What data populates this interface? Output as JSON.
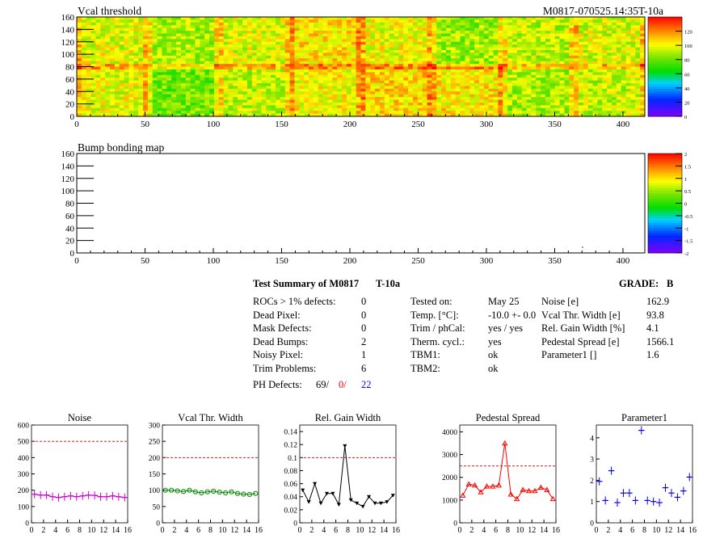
{
  "module_id": "M0817-070525.14:35T-10a",
  "vcal_map": {
    "title": "Vcal threshold",
    "x_ticks": [
      "0",
      "50",
      "100",
      "150",
      "200",
      "250",
      "300",
      "350",
      "400"
    ],
    "y_ticks": [
      "0",
      "20",
      "40",
      "60",
      "80",
      "100",
      "120",
      "140",
      "160"
    ],
    "xlim": [
      0,
      416
    ],
    "ylim": [
      0,
      160
    ],
    "palette_ticks": [
      "0",
      "20",
      "40",
      "60",
      "80",
      "100",
      "120"
    ],
    "palette_max": 140
  },
  "bump_map": {
    "title": "Bump bonding map",
    "x_ticks": [
      "0",
      "50",
      "100",
      "150",
      "200",
      "250",
      "300",
      "350",
      "400"
    ],
    "y_ticks": [
      "0",
      "20",
      "40",
      "60",
      "80",
      "100",
      "120",
      "140",
      "160"
    ],
    "xlim": [
      0,
      416
    ],
    "ylim": [
      0,
      160
    ],
    "palette_ticks": [
      "-2",
      "-1.5",
      "-1",
      "-0.5",
      "0",
      "0.5",
      "1",
      "1.5",
      "2"
    ],
    "dot": {
      "x": 370,
      "y": 10
    }
  },
  "summary": {
    "title": "Test Summary of M0817",
    "temp_tag": "T-10a",
    "grade_label": "GRADE:",
    "grade": "B",
    "left_labels": [
      "ROCs > 1% defects:",
      "Dead Pixel:",
      "Mask Defects:",
      "Dead Bumps:",
      "Noisy Pixel:",
      "Trim Problems:"
    ],
    "left_values": [
      "0",
      "0",
      "0",
      "2",
      "1",
      "6"
    ],
    "ph_label": "PH Defects:",
    "ph_values": [
      "69/",
      "0/",
      "22"
    ],
    "ph_colors": [
      "#000000",
      "#ff0000",
      "#0000ff"
    ],
    "mid_labels": [
      "Tested on:",
      "Temp. [°C]:",
      "Trim / phCal:",
      "Therm. cycl.:",
      "TBM1:",
      "TBM2:"
    ],
    "mid_values": [
      "May 25",
      "-10.0 +- 0.0",
      "yes / yes",
      "yes",
      "ok",
      "ok"
    ],
    "right_labels": [
      "Noise [e]",
      "Vcal Thr. Width [e]",
      "Rel. Gain Width [%]",
      "Pedestal Spread [e]",
      "Parameter1 []"
    ],
    "right_values": [
      "162.9",
      "93.8",
      "4.1",
      "1566.1",
      "1.6"
    ]
  },
  "chart_data": [
    {
      "type": "line",
      "title": "Noise",
      "color": "#cc00cc",
      "marker": "cross",
      "x": [
        0,
        1,
        2,
        3,
        4,
        5,
        6,
        7,
        8,
        9,
        10,
        11,
        12,
        13,
        14,
        15
      ],
      "values": [
        175,
        170,
        170,
        160,
        155,
        160,
        165,
        160,
        165,
        170,
        168,
        160,
        160,
        165,
        160,
        155
      ],
      "ylim": [
        0,
        600
      ],
      "yticks": [
        "0",
        "100",
        "200",
        "300",
        "400",
        "500",
        "600"
      ],
      "limit": 500,
      "line": true
    },
    {
      "type": "line",
      "title": "Vcal Thr. Width",
      "color": "#008800",
      "marker": "circle",
      "x": [
        0,
        1,
        2,
        3,
        4,
        5,
        6,
        7,
        8,
        9,
        10,
        11,
        12,
        13,
        14,
        15
      ],
      "values": [
        100,
        100,
        98,
        96,
        100,
        95,
        92,
        95,
        97,
        94,
        92,
        95,
        90,
        88,
        87,
        90
      ],
      "ylim": [
        0,
        300
      ],
      "yticks": [
        "0",
        "50",
        "100",
        "150",
        "200",
        "250",
        "300"
      ],
      "limit": 200,
      "line": true
    },
    {
      "type": "line",
      "title": "Rel. Gain Width",
      "color": "#000000",
      "marker": "triangle-down",
      "x": [
        0,
        1,
        2,
        3,
        4,
        5,
        6,
        7,
        8,
        9,
        10,
        11,
        12,
        13,
        14,
        15
      ],
      "values": [
        0.05,
        0.032,
        0.06,
        0.03,
        0.045,
        0.045,
        0.028,
        0.118,
        0.035,
        0.03,
        0.025,
        0.04,
        0.03,
        0.03,
        0.032,
        0.042
      ],
      "ylim": [
        0,
        0.15
      ],
      "yticks": [
        "0",
        "0.02",
        "0.04",
        "0.06",
        "0.08",
        "0.1",
        "0.12",
        "0.14"
      ],
      "limit": 0.1,
      "line": true
    },
    {
      "type": "line",
      "title": "Pedestal Spread",
      "color": "#ff0000",
      "marker": "triangle-up",
      "x": [
        0,
        1,
        2,
        3,
        4,
        5,
        6,
        7,
        8,
        9,
        10,
        11,
        12,
        13,
        14,
        15
      ],
      "values": [
        1200,
        1700,
        1650,
        1350,
        1600,
        1600,
        1650,
        3500,
        1250,
        1050,
        1450,
        1400,
        1400,
        1550,
        1450,
        1050
      ],
      "ylim": [
        0,
        4300
      ],
      "yticks": [
        "0",
        "1000",
        "2000",
        "3000",
        "4000"
      ],
      "limit": 2500,
      "line": true
    },
    {
      "type": "scatter",
      "title": "Parameter1",
      "color": "#0000ff",
      "marker": "cross",
      "x": [
        0,
        1,
        2,
        3,
        4,
        5,
        6,
        7,
        8,
        9,
        10,
        11,
        12,
        13,
        14,
        15
      ],
      "values": [
        1.95,
        1.05,
        2.45,
        0.95,
        1.4,
        1.4,
        1.05,
        4.35,
        1.05,
        1.0,
        0.95,
        1.65,
        1.4,
        1.2,
        1.5,
        2.15
      ],
      "ylim": [
        0,
        4.6
      ],
      "yticks": [
        "0",
        "1",
        "2",
        "3",
        "4"
      ],
      "limit": null,
      "line": false
    }
  ],
  "common_x_ticks": [
    "0",
    "2",
    "4",
    "6",
    "8",
    "10",
    "12",
    "14",
    "16"
  ],
  "colors": {
    "limit_line": "#cc0000",
    "frame": "#000000"
  }
}
